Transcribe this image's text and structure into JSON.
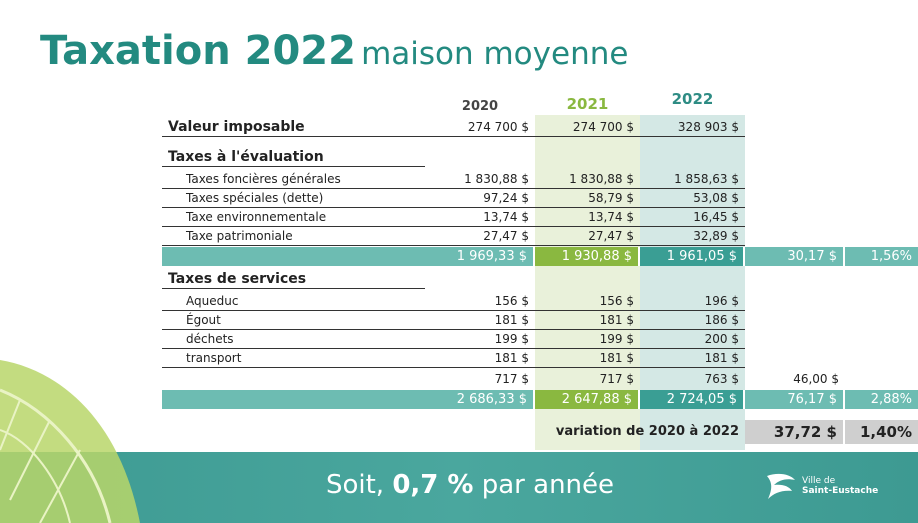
{
  "title": {
    "bold": "Taxation 2022",
    "rest": "maison moyenne"
  },
  "table": {
    "header": [
      "2020",
      "2021",
      "2022"
    ],
    "valeur": {
      "label": "Valeur imposable",
      "values": [
        "274 700 $",
        "274 700 $",
        "328 903 $"
      ]
    },
    "evaluation": {
      "title": "Taxes à l'évaluation",
      "items": [
        {
          "label": "Taxes foncières générales",
          "values": [
            "1 830,88 $",
            "1 830,88 $",
            "1 858,63 $"
          ]
        },
        {
          "label": "Taxes spéciales (dette)",
          "values": [
            "97,24 $",
            "58,79 $",
            "53,08 $"
          ]
        },
        {
          "label": "Taxe environnementale",
          "values": [
            "13,74 $",
            "13,74 $",
            "16,45 $"
          ]
        },
        {
          "label": "Taxe patrimoniale",
          "values": [
            "27,47 $",
            "27,47 $",
            "32,89 $"
          ]
        }
      ],
      "total": {
        "values": [
          "1 969,33 $",
          "1 930,88 $",
          "1 961,05 $"
        ],
        "change": "30,17 $",
        "pct": "1,56%"
      }
    },
    "services": {
      "title": "Taxes de services",
      "items": [
        {
          "label": "Aqueduc",
          "values": [
            "156 $",
            "156 $",
            "196 $"
          ]
        },
        {
          "label": "Égout",
          "values": [
            "181 $",
            "181 $",
            "186 $"
          ]
        },
        {
          "label": "déchets",
          "values": [
            "199 $",
            "199 $",
            "200 $"
          ]
        },
        {
          "label": "transport",
          "values": [
            "181 $",
            "181 $",
            "181 $"
          ]
        }
      ],
      "subtotal": {
        "values": [
          "717 $",
          "717 $",
          "763 $"
        ],
        "change": "46,00 $"
      },
      "total": {
        "values": [
          "2 686,33 $",
          "2 647,88 $",
          "2 724,05 $"
        ],
        "change": "76,17 $",
        "pct": "2,88%"
      }
    },
    "variation": {
      "label": "variation de 2020 à 2022",
      "change": "37,72 $",
      "pct": "1,40%"
    }
  },
  "footer": {
    "before": "Soit,",
    "emphasis": "0,7 %",
    "after": "par année"
  },
  "logo": {
    "line1": "Ville de",
    "line2": "Saint-Eustache"
  }
}
